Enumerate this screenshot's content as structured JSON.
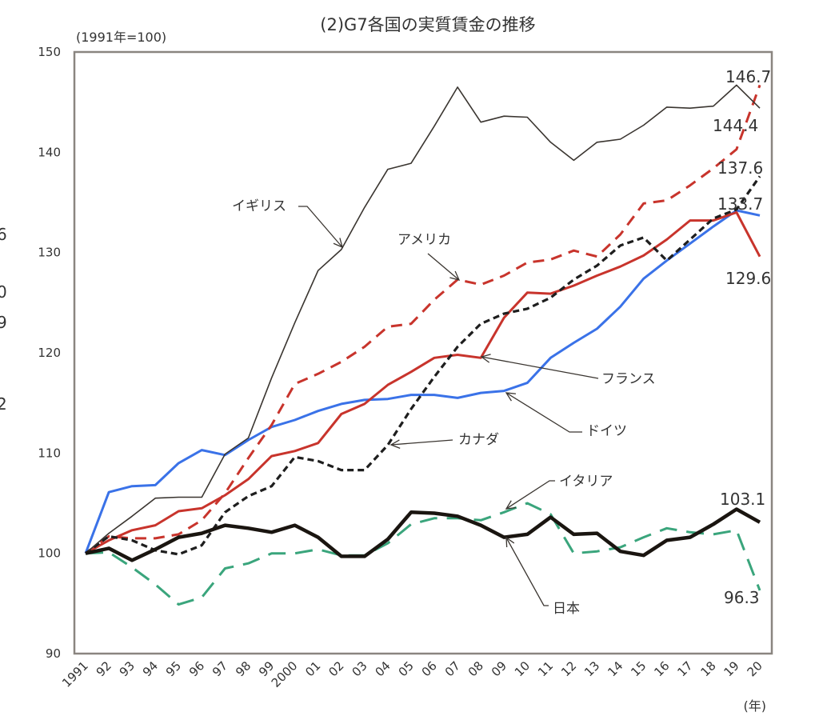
{
  "chart_data": {
    "type": "line",
    "title": "(2)G7各国の実質賃金の推移",
    "ylabel": "(1991年=100)",
    "xlabel": "(年)",
    "ylim": [
      90,
      150
    ],
    "yticks": [
      90,
      100,
      110,
      120,
      130,
      140,
      150
    ],
    "grid": false,
    "x": [
      1991,
      1992,
      1993,
      1994,
      1995,
      1996,
      1997,
      1998,
      1999,
      2000,
      2001,
      2002,
      2003,
      2004,
      2005,
      2006,
      2007,
      2008,
      2009,
      2010,
      2011,
      2012,
      2013,
      2014,
      2015,
      2016,
      2017,
      2018,
      2019,
      2020
    ],
    "xtick_labels": [
      "1991",
      "92",
      "93",
      "94",
      "95",
      "96",
      "97",
      "98",
      "99",
      "2000",
      "01",
      "02",
      "03",
      "04",
      "05",
      "06",
      "07",
      "08",
      "09",
      "10",
      "11",
      "12",
      "13",
      "14",
      "15",
      "16",
      "17",
      "18",
      "19",
      "20"
    ],
    "series": [
      {
        "name": "イギリス",
        "color": "#3a3530",
        "style": "solid-thin",
        "values": [
          100,
          102,
          103.7,
          105.5,
          105.6,
          105.6,
          109.9,
          111.5,
          117.5,
          123,
          128.2,
          130.3,
          134.5,
          138.3,
          138.9,
          142.6,
          146.5,
          143,
          143.6,
          143.5,
          141,
          139.2,
          141,
          141.3,
          142.7,
          144.5,
          144.4,
          144.6,
          146.7,
          144.4
        ]
      },
      {
        "name": "アメリカ",
        "color": "#c8342c",
        "style": "dashed",
        "values": [
          100,
          101.7,
          101.5,
          101.5,
          101.9,
          103.3,
          106,
          109.5,
          112.8,
          116.9,
          117.9,
          119.1,
          120.6,
          122.6,
          122.9,
          125.3,
          127.3,
          126.8,
          127.7,
          129,
          129.3,
          130.2,
          129.6,
          131.8,
          134.9,
          135.2,
          136.7,
          138.4,
          140.3,
          146.7
        ]
      },
      {
        "name": "カナダ",
        "color": "#1e1e1e",
        "style": "dotted-dashed",
        "values": [
          100,
          101.7,
          101.3,
          100.3,
          99.9,
          100.8,
          104.1,
          105.7,
          106.7,
          109.6,
          109.2,
          108.3,
          108.3,
          110.8,
          114.4,
          117.6,
          120.6,
          122.9,
          123.9,
          124.4,
          125.5,
          127.3,
          128.7,
          130.7,
          131.5,
          129.2,
          131.3,
          133.4,
          134.3,
          137.6
        ]
      },
      {
        "name": "フランス",
        "color": "#c8342c",
        "style": "solid",
        "values": [
          100,
          101.3,
          102.3,
          102.8,
          104.2,
          104.5,
          105.8,
          107.4,
          109.7,
          110.2,
          111,
          113.9,
          114.9,
          116.8,
          118.1,
          119.5,
          119.8,
          119.5,
          123.5,
          126,
          125.9,
          126.7,
          127.7,
          128.6,
          129.7,
          131.3,
          133.2,
          133.2,
          134,
          129.6
        ]
      },
      {
        "name": "ドイツ",
        "color": "#3a72e8",
        "style": "solid",
        "values": [
          100,
          106.1,
          106.7,
          106.8,
          109,
          110.3,
          109.8,
          111.3,
          112.6,
          113.3,
          114.2,
          114.9,
          115.3,
          115.4,
          115.8,
          115.8,
          115.5,
          116,
          116.2,
          117,
          119.5,
          121,
          122.4,
          124.6,
          127.4,
          129.2,
          130.9,
          132.6,
          134.2,
          133.7
        ]
      },
      {
        "name": "イタリア",
        "color": "#3aa57c",
        "style": "long-dashed",
        "values": [
          100,
          100.1,
          98.6,
          96.9,
          94.9,
          95.6,
          98.5,
          99,
          100,
          100,
          100.4,
          99.8,
          99.8,
          101,
          102.9,
          103.5,
          103.5,
          103.3,
          104.1,
          105,
          103.9,
          100,
          100.2,
          100.6,
          101.6,
          102.5,
          102.1,
          101.9,
          102.3,
          96.3
        ]
      },
      {
        "name": "日本",
        "color": "#1a1510",
        "style": "solid-thick",
        "values": [
          100,
          100.5,
          99.3,
          100.4,
          101.6,
          102,
          102.8,
          102.5,
          102.1,
          102.8,
          101.6,
          99.7,
          99.7,
          101.4,
          104.1,
          104,
          103.7,
          102.8,
          101.6,
          101.9,
          103.6,
          101.9,
          102,
          100.2,
          99.8,
          101.3,
          101.6,
          102.9,
          104.4,
          103.1
        ]
      }
    ],
    "annotations": [
      {
        "text": "イギリス",
        "series": "イギリス"
      },
      {
        "text": "アメリカ",
        "series": "アメリカ"
      },
      {
        "text": "フランス",
        "series": "フランス"
      },
      {
        "text": "ドイツ",
        "series": "ドイツ"
      },
      {
        "text": "カナダ",
        "series": "カナダ"
      },
      {
        "text": "イタリア",
        "series": "イタリア"
      },
      {
        "text": "日本",
        "series": "日本"
      }
    ],
    "end_labels": [
      {
        "text": "146.7",
        "series": "アメリカ"
      },
      {
        "text": "144.4",
        "series": "イギリス"
      },
      {
        "text": "137.6",
        "series": "カナダ"
      },
      {
        "text": "133.7",
        "series": "ドイツ"
      },
      {
        "text": "129.6",
        "series": "フランス"
      },
      {
        "text": "103.1",
        "series": "日本"
      },
      {
        "text": "96.3",
        "series": "イタリア"
      }
    ],
    "left_edge_fragments": [
      "6",
      "0",
      "9",
      "2"
    ]
  }
}
